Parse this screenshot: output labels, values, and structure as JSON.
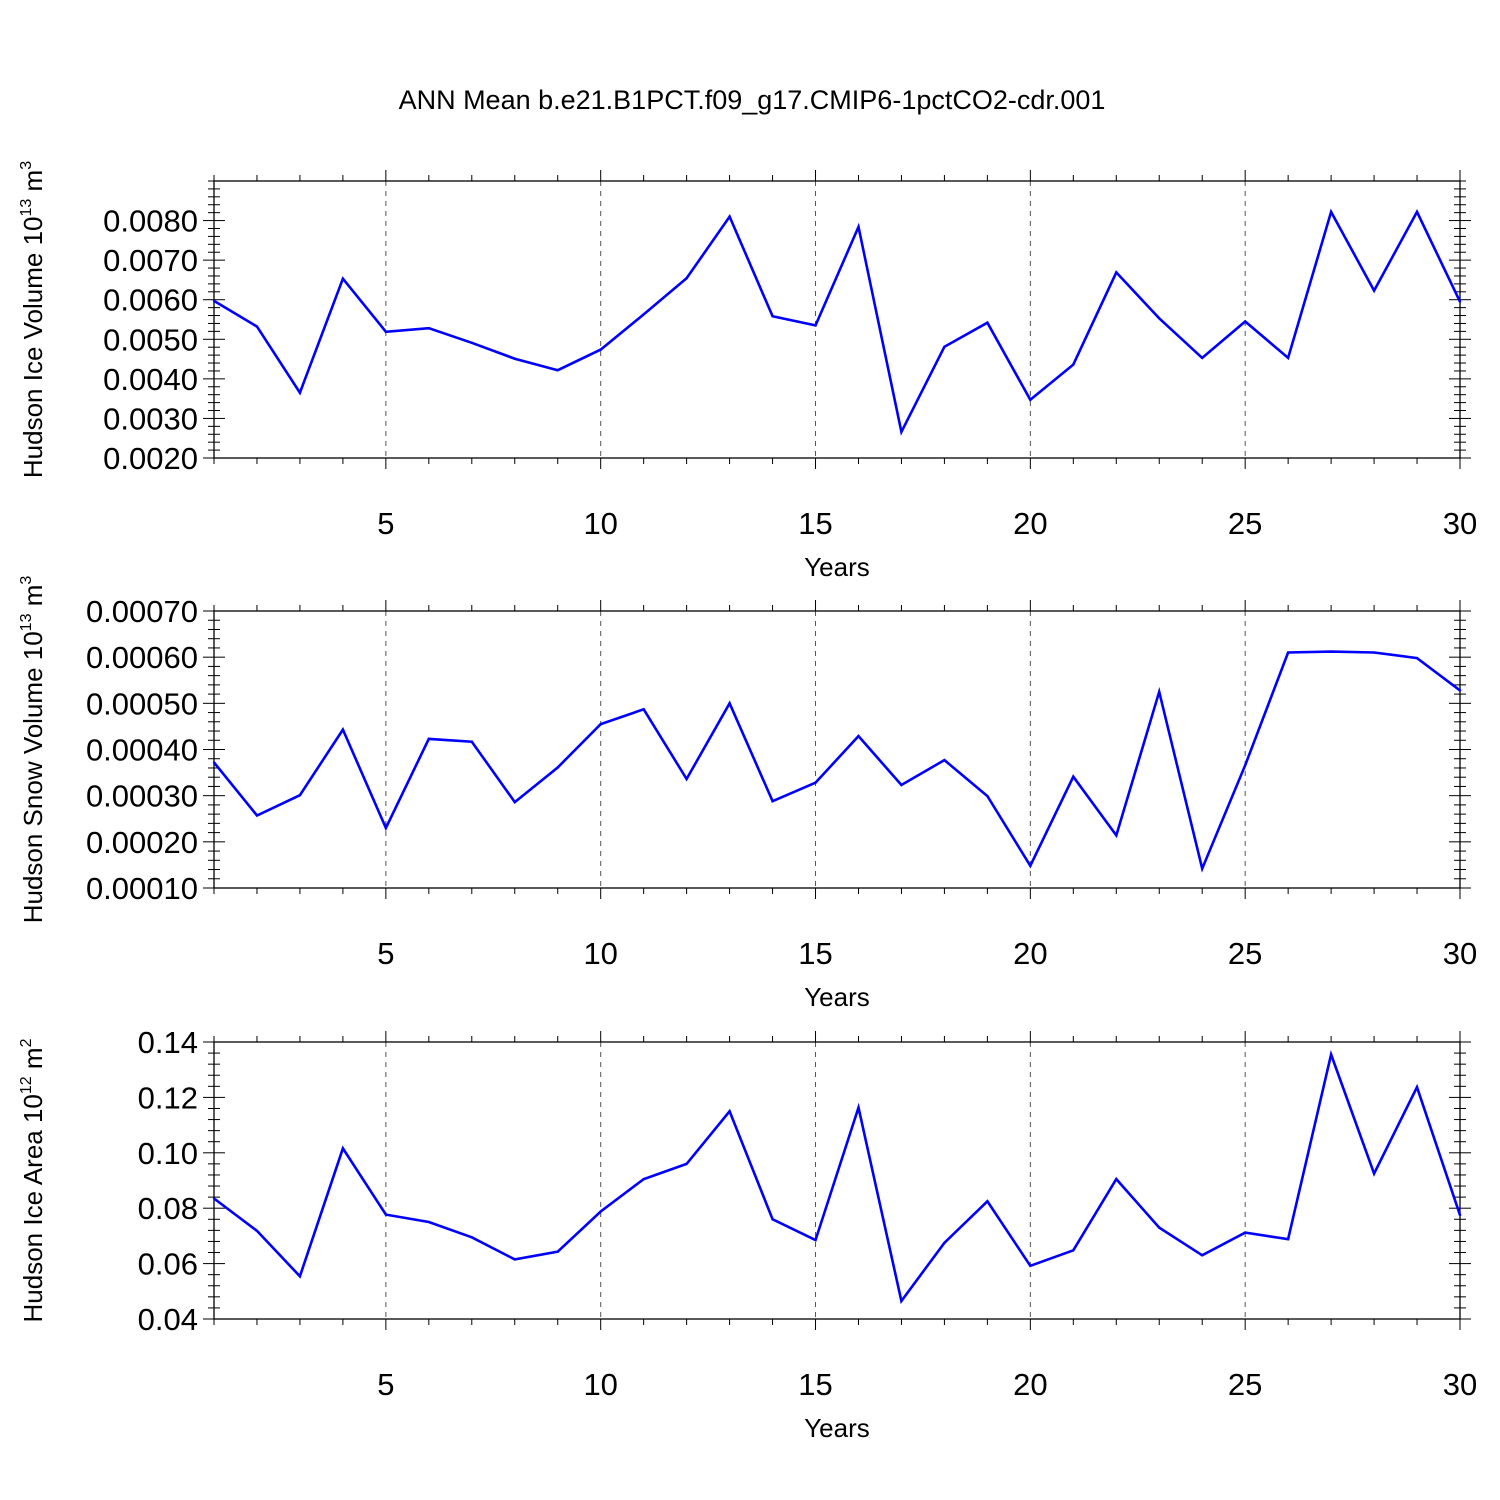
{
  "figure": {
    "title": "ANN Mean b.e21.B1PCT.f09_g17.CMIP6-1pctCO2-cdr.001",
    "line_color": "#0000ff",
    "axis_color": "#000000",
    "grid_color": "#555555"
  },
  "chart_data": [
    {
      "type": "line",
      "xlabel": "Years",
      "ylabel": {
        "text": "Hudson Ice Volume 10",
        "sup1": "13",
        "mid": " m",
        "sup2": "3"
      },
      "xlim": [
        1,
        30
      ],
      "ylim": [
        0.002,
        0.009
      ],
      "xticks": [
        "5",
        "10",
        "15",
        "20",
        "25",
        "30"
      ],
      "xtick_values": [
        5,
        10,
        15,
        20,
        25,
        30
      ],
      "yticks": [
        "0.0020",
        "0.0030",
        "0.0040",
        "0.0050",
        "0.0060",
        "0.0070",
        "0.0080"
      ],
      "ytick_values": [
        0.002,
        0.003,
        0.004,
        0.005,
        0.006,
        0.007,
        0.008
      ],
      "grid": "vertical dashed",
      "x": [
        1,
        2,
        3,
        4,
        5,
        6,
        7,
        8,
        9,
        10,
        11,
        12,
        13,
        14,
        15,
        16,
        17,
        18,
        19,
        20,
        21,
        22,
        23,
        24,
        25,
        26,
        27,
        28,
        29,
        30
      ],
      "values": [
        0.00597,
        0.00532,
        0.00365,
        0.00653,
        0.00519,
        0.00528,
        0.00491,
        0.00451,
        0.00422,
        0.00474,
        0.00563,
        0.00654,
        0.0081,
        0.00558,
        0.00535,
        0.00784,
        0.00266,
        0.00481,
        0.00542,
        0.00347,
        0.00436,
        0.00669,
        0.00553,
        0.00453,
        0.00545,
        0.00453,
        0.00822,
        0.00623,
        0.00822,
        0.00595
      ]
    },
    {
      "type": "line",
      "xlabel": "Years",
      "ylabel": {
        "text": "Hudson Snow Volume 10",
        "sup1": "13",
        "mid": " m",
        "sup2": "3"
      },
      "xlim": [
        1,
        30
      ],
      "ylim": [
        0.0001,
        0.0007
      ],
      "xticks": [
        "5",
        "10",
        "15",
        "20",
        "25",
        "30"
      ],
      "xtick_values": [
        5,
        10,
        15,
        20,
        25,
        30
      ],
      "yticks": [
        "0.00010",
        "0.00020",
        "0.00030",
        "0.00040",
        "0.00050",
        "0.00060",
        "0.00070"
      ],
      "ytick_values": [
        0.0001,
        0.0002,
        0.0003,
        0.0004,
        0.0005,
        0.0006,
        0.0007
      ],
      "grid": "vertical dashed",
      "x": [
        1,
        2,
        3,
        4,
        5,
        6,
        7,
        8,
        9,
        10,
        11,
        12,
        13,
        14,
        15,
        16,
        17,
        18,
        19,
        20,
        21,
        22,
        23,
        24,
        25,
        26,
        27,
        28,
        29,
        30
      ],
      "values": [
        0.000372,
        0.000257,
        0.000301,
        0.000443,
        0.00023,
        0.000423,
        0.000417,
        0.000286,
        0.000361,
        0.000455,
        0.000487,
        0.000336,
        0.0005,
        0.000288,
        0.000328,
        0.000429,
        0.000323,
        0.000377,
        0.000299,
        0.000148,
        0.000341,
        0.000214,
        0.000525,
        0.000142,
        0.000366,
        0.00061,
        0.000612,
        0.00061,
        0.000598,
        0.000528
      ]
    },
    {
      "type": "line",
      "xlabel": "Years",
      "ylabel": {
        "text": "Hudson Ice Area 10",
        "sup1": "12",
        "mid": " m",
        "sup2": "2"
      },
      "xlim": [
        1,
        30
      ],
      "ylim": [
        0.04,
        0.14
      ],
      "xticks": [
        "5",
        "10",
        "15",
        "20",
        "25",
        "30"
      ],
      "xtick_values": [
        5,
        10,
        15,
        20,
        25,
        30
      ],
      "yticks": [
        "0.04",
        "0.06",
        "0.08",
        "0.10",
        "0.12",
        "0.14"
      ],
      "ytick_values": [
        0.04,
        0.06,
        0.08,
        0.1,
        0.12,
        0.14
      ],
      "grid": "vertical dashed",
      "x": [
        1,
        2,
        3,
        4,
        5,
        6,
        7,
        8,
        9,
        10,
        11,
        12,
        13,
        14,
        15,
        16,
        17,
        18,
        19,
        20,
        21,
        22,
        23,
        24,
        25,
        26,
        27,
        28,
        29,
        30
      ],
      "values": [
        0.0835,
        0.0718,
        0.0554,
        0.1016,
        0.0777,
        0.075,
        0.0695,
        0.0615,
        0.0643,
        0.0788,
        0.0905,
        0.096,
        0.115,
        0.076,
        0.0685,
        0.1163,
        0.0465,
        0.0675,
        0.0825,
        0.0592,
        0.0648,
        0.0905,
        0.073,
        0.063,
        0.0712,
        0.0688,
        0.1355,
        0.0925,
        0.1237,
        0.0775
      ]
    }
  ]
}
